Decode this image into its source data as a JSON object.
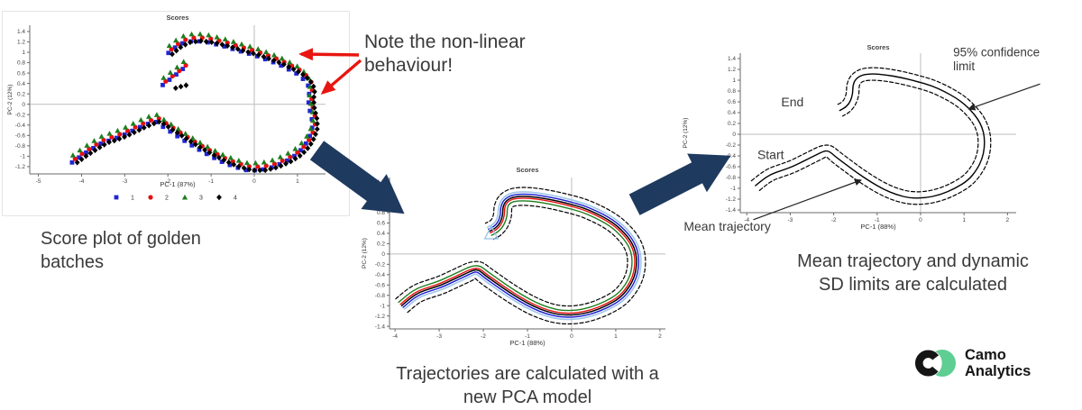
{
  "note": {
    "text": "Note the non-linear\nbehaviour!"
  },
  "captions": {
    "plot1": "Score plot of golden\nbatches",
    "plot2": "Trajectories are calculated with a\nnew PCA model",
    "plot3": "Mean trajectory and dynamic\nSD limits are calculated"
  },
  "logo": {
    "name_line1": "Camo",
    "name_line2": "Analytics",
    "green": "#5ece93",
    "black": "#151515"
  },
  "colors": {
    "arrow_navy": "#1f3a5f",
    "arrow_red": "#e81510",
    "grid": "#bdbdbd",
    "axis": "#6a6a6a",
    "tick_text": "#444444",
    "annotation_text": "#3a3a3a",
    "series_blue": "#2026d2",
    "series_red": "#e81010",
    "series_green": "#1e7d1e",
    "series_black": "#000000",
    "series_lightblue": "#9fc6e8"
  },
  "chart_data": [
    {
      "id": "p1",
      "type": "scatter",
      "title": "Scores",
      "xlabel": "PC-1 (87%)",
      "ylabel": "PC-2 (12%)",
      "xlim": [
        -5.2,
        1.65
      ],
      "ylim": [
        -1.34,
        1.52
      ],
      "xticks": [
        -5,
        -4,
        -3,
        -2,
        -1,
        0,
        1
      ],
      "yticks": [
        1.4,
        1.2,
        1,
        0.8,
        0.6,
        0.4,
        0.2,
        0,
        -0.2,
        -0.4,
        -0.6,
        -0.8,
        -1,
        -1.2
      ],
      "legend": [
        {
          "label": "1",
          "marker": "square",
          "color": "#2026d2"
        },
        {
          "label": "2",
          "marker": "circle",
          "color": "#e81010"
        },
        {
          "label": "3",
          "marker": "triangle",
          "color": "#1e7d1e"
        },
        {
          "label": "4",
          "marker": "diamond",
          "color": "#000000"
        }
      ],
      "paths": {
        "main": [
          [
            -4.2,
            -1.05
          ],
          [
            -3.95,
            -0.9
          ],
          [
            -3.72,
            -0.78
          ],
          [
            -3.5,
            -0.67
          ],
          [
            -3.3,
            -0.62
          ],
          [
            -3.08,
            -0.55
          ],
          [
            -2.85,
            -0.46
          ],
          [
            -2.6,
            -0.36
          ],
          [
            -2.42,
            -0.3
          ],
          [
            -2.28,
            -0.26
          ],
          [
            -2.1,
            -0.36
          ],
          [
            -1.88,
            -0.48
          ],
          [
            -1.62,
            -0.62
          ],
          [
            -1.35,
            -0.76
          ],
          [
            -1.05,
            -0.9
          ],
          [
            -0.75,
            -1.03
          ],
          [
            -0.45,
            -1.13
          ],
          [
            -0.15,
            -1.2
          ],
          [
            0.15,
            -1.2
          ],
          [
            0.45,
            -1.14
          ],
          [
            0.75,
            -1.03
          ],
          [
            1.0,
            -0.9
          ],
          [
            1.18,
            -0.74
          ],
          [
            1.3,
            -0.56
          ],
          [
            1.36,
            -0.4
          ],
          [
            1.36,
            -0.24
          ],
          [
            1.32,
            -0.1
          ],
          [
            1.28,
            0.05
          ],
          [
            1.28,
            0.2
          ],
          [
            1.3,
            0.33
          ],
          [
            1.26,
            0.45
          ],
          [
            1.16,
            0.55
          ],
          [
            1.0,
            0.66
          ],
          [
            0.82,
            0.74
          ],
          [
            0.58,
            0.84
          ],
          [
            0.3,
            0.93
          ],
          [
            0.0,
            1.02
          ],
          [
            -0.35,
            1.1
          ],
          [
            -0.7,
            1.19
          ],
          [
            -1.05,
            1.26
          ],
          [
            -1.35,
            1.29
          ],
          [
            -1.6,
            1.26
          ],
          [
            -1.8,
            1.17
          ],
          [
            -1.95,
            1.07
          ],
          [
            -2.06,
            0.99
          ]
        ],
        "mid": [
          [
            -2.1,
            0.44
          ],
          [
            -1.93,
            0.55
          ],
          [
            -1.76,
            0.66
          ],
          [
            -1.62,
            0.76
          ],
          [
            -1.5,
            0.86
          ]
        ],
        "midblack": [
          [
            -1.92,
            0.38
          ],
          [
            -1.76,
            0.42
          ],
          [
            -1.6,
            0.45
          ]
        ]
      },
      "series": [
        {
          "name": "1",
          "marker": "square",
          "color": "#2026d2",
          "offset": [
            -0.02,
            -0.07
          ],
          "spacing": 9.5,
          "paths": [
            "main",
            "mid"
          ]
        },
        {
          "name": "2",
          "marker": "circle",
          "color": "#e81010",
          "offset": [
            0.05,
            0.0
          ],
          "spacing": 9.5,
          "paths": [
            "main",
            "mid"
          ]
        },
        {
          "name": "3",
          "marker": "triangle",
          "color": "#1e7d1e",
          "offset": [
            0.0,
            0.07
          ],
          "spacing": 9.5,
          "paths": [
            "main",
            "mid"
          ]
        },
        {
          "name": "4",
          "marker": "diamond",
          "color": "#000000",
          "offset": [
            0.1,
            -0.07
          ],
          "spacing": 6,
          "paths": [
            "main",
            "midblack"
          ]
        }
      ]
    },
    {
      "id": "p2",
      "type": "line",
      "title": "Scores",
      "xlabel": "PC-1 (88%)",
      "ylabel": "PC-2 (12%)",
      "xlim": [
        -4.125,
        2.125
      ],
      "ylim": [
        -1.45,
        1.48
      ],
      "xticks": [
        -4,
        -3,
        -2,
        -1,
        0,
        1,
        2
      ],
      "yticks": [
        1.4,
        1.2,
        1,
        0.8,
        0.6,
        0.4,
        0.2,
        0,
        -0.2,
        -0.4,
        -0.6,
        -0.8,
        -1,
        -1.2,
        -1.4
      ],
      "paths": {
        "main": [
          [
            -3.85,
            -1.0
          ],
          [
            -3.65,
            -0.85
          ],
          [
            -3.45,
            -0.74
          ],
          [
            -3.2,
            -0.67
          ],
          [
            -2.95,
            -0.6
          ],
          [
            -2.7,
            -0.5
          ],
          [
            -2.45,
            -0.4
          ],
          [
            -2.25,
            -0.32
          ],
          [
            -2.12,
            -0.3
          ],
          [
            -1.95,
            -0.42
          ],
          [
            -1.7,
            -0.57
          ],
          [
            -1.45,
            -0.72
          ],
          [
            -1.15,
            -0.88
          ],
          [
            -0.85,
            -1.02
          ],
          [
            -0.55,
            -1.12
          ],
          [
            -0.25,
            -1.18
          ],
          [
            0.1,
            -1.18
          ],
          [
            0.45,
            -1.12
          ],
          [
            0.8,
            -1.0
          ],
          [
            1.1,
            -0.85
          ],
          [
            1.3,
            -0.65
          ],
          [
            1.42,
            -0.45
          ],
          [
            1.47,
            -0.25
          ],
          [
            1.47,
            -0.05
          ],
          [
            1.42,
            0.12
          ],
          [
            1.32,
            0.28
          ],
          [
            1.18,
            0.42
          ],
          [
            1.02,
            0.55
          ],
          [
            0.82,
            0.67
          ],
          [
            0.55,
            0.79
          ],
          [
            0.25,
            0.9
          ],
          [
            -0.1,
            0.98
          ],
          [
            -0.45,
            1.05
          ],
          [
            -0.8,
            1.1
          ],
          [
            -1.1,
            1.12
          ],
          [
            -1.35,
            1.1
          ],
          [
            -1.5,
            1.02
          ],
          [
            -1.56,
            0.9
          ],
          [
            -1.56,
            0.75
          ],
          [
            -1.62,
            0.6
          ],
          [
            -1.72,
            0.5
          ],
          [
            -1.86,
            0.44
          ]
        ]
      },
      "series": [
        {
          "name": "batch-lightblue",
          "color": "#9fc6e8",
          "offsetPx": 5,
          "width": 1.6
        },
        {
          "name": "batch-green",
          "color": "#1e7d1e",
          "offsetPx": -5,
          "width": 1.4
        },
        {
          "name": "batch-red",
          "color": "#e81010",
          "offsetPx": -2,
          "width": 1.4
        },
        {
          "name": "batch-blue",
          "color": "#1a1ad0",
          "offsetPx": 2.5,
          "width": 1.4
        },
        {
          "name": "mean",
          "color": "#000000",
          "offsetPx": 0,
          "width": 1.5
        },
        {
          "name": "sd-lower",
          "color": "#000000",
          "offsetPx": -10,
          "width": 1.2,
          "dash": "4 2.5"
        },
        {
          "name": "sd-upper",
          "color": "#000000",
          "offsetPx": 10,
          "width": 1.2,
          "dash": "4 2.5"
        }
      ],
      "shapes": [
        {
          "type": "triangle",
          "x": -1.82,
          "y": 0.4,
          "size": 8,
          "color": "#9fc6e8"
        }
      ]
    },
    {
      "id": "p3",
      "type": "line",
      "title": "Scores",
      "xlabel": "PC-1 (88%)",
      "ylabel": "PC-2 (12%)",
      "xlim": [
        -4.15,
        2.2
      ],
      "ylim": [
        -1.45,
        1.5
      ],
      "xticks": [
        -4,
        -3,
        -2,
        -1,
        0,
        1,
        2
      ],
      "yticks": [
        1.4,
        1.2,
        1,
        0.8,
        0.6,
        0.4,
        0.2,
        0,
        -0.2,
        -0.4,
        -0.6,
        -0.8,
        -1,
        -1.2,
        -1.4
      ],
      "paths": {
        "main": [
          [
            -3.8,
            -0.95
          ],
          [
            -3.65,
            -0.85
          ],
          [
            -3.45,
            -0.74
          ],
          [
            -3.2,
            -0.67
          ],
          [
            -2.95,
            -0.6
          ],
          [
            -2.7,
            -0.5
          ],
          [
            -2.45,
            -0.4
          ],
          [
            -2.25,
            -0.32
          ],
          [
            -2.12,
            -0.3
          ],
          [
            -1.95,
            -0.42
          ],
          [
            -1.7,
            -0.57
          ],
          [
            -1.45,
            -0.72
          ],
          [
            -1.15,
            -0.88
          ],
          [
            -0.85,
            -1.02
          ],
          [
            -0.55,
            -1.12
          ],
          [
            -0.25,
            -1.18
          ],
          [
            0.1,
            -1.18
          ],
          [
            0.45,
            -1.12
          ],
          [
            0.8,
            -1.0
          ],
          [
            1.1,
            -0.85
          ],
          [
            1.3,
            -0.65
          ],
          [
            1.42,
            -0.45
          ],
          [
            1.47,
            -0.25
          ],
          [
            1.47,
            -0.05
          ],
          [
            1.42,
            0.12
          ],
          [
            1.32,
            0.28
          ],
          [
            1.18,
            0.42
          ],
          [
            1.02,
            0.55
          ],
          [
            0.82,
            0.67
          ],
          [
            0.55,
            0.79
          ],
          [
            0.25,
            0.9
          ],
          [
            -0.1,
            0.98
          ],
          [
            -0.45,
            1.05
          ],
          [
            -0.8,
            1.1
          ],
          [
            -1.1,
            1.12
          ],
          [
            -1.35,
            1.1
          ],
          [
            -1.5,
            1.02
          ],
          [
            -1.56,
            0.9
          ],
          [
            -1.56,
            0.75
          ],
          [
            -1.62,
            0.6
          ],
          [
            -1.72,
            0.5
          ],
          [
            -1.86,
            0.44
          ]
        ]
      },
      "series": [
        {
          "name": "mean-trajectory",
          "color": "#000000",
          "offsetPx": 0,
          "width": 1.4
        },
        {
          "name": "sd-lower",
          "color": "#000000",
          "offsetPx": -7,
          "width": 1.2,
          "dash": "4 2.5"
        },
        {
          "name": "sd-upper",
          "color": "#000000",
          "offsetPx": 7,
          "width": 1.2,
          "dash": "4 2.5"
        }
      ],
      "annotations": [
        {
          "text": "End",
          "x": -2.95,
          "y": 0.52,
          "size": 14,
          "anchor": "middle"
        },
        {
          "text": "Start",
          "x": -3.45,
          "y": -0.46,
          "size": 14,
          "anchor": "middle"
        },
        {
          "text": "95% confidence",
          "x": 0.75,
          "y": 1.44,
          "size": 13.5,
          "anchor": "start"
        },
        {
          "text": "limit",
          "x": 0.75,
          "y": 1.18,
          "size": 13.5,
          "anchor": "start"
        },
        {
          "text": "Mean trajectory",
          "x": -5.45,
          "y": -1.78,
          "size": 14,
          "anchor": "start"
        }
      ],
      "arrows": [
        {
          "from": [
            2.75,
            0.93
          ],
          "to": [
            1.12,
            0.47
          ]
        },
        {
          "from": [
            -3.85,
            -1.58
          ],
          "to": [
            -1.38,
            -0.85
          ]
        }
      ]
    }
  ]
}
